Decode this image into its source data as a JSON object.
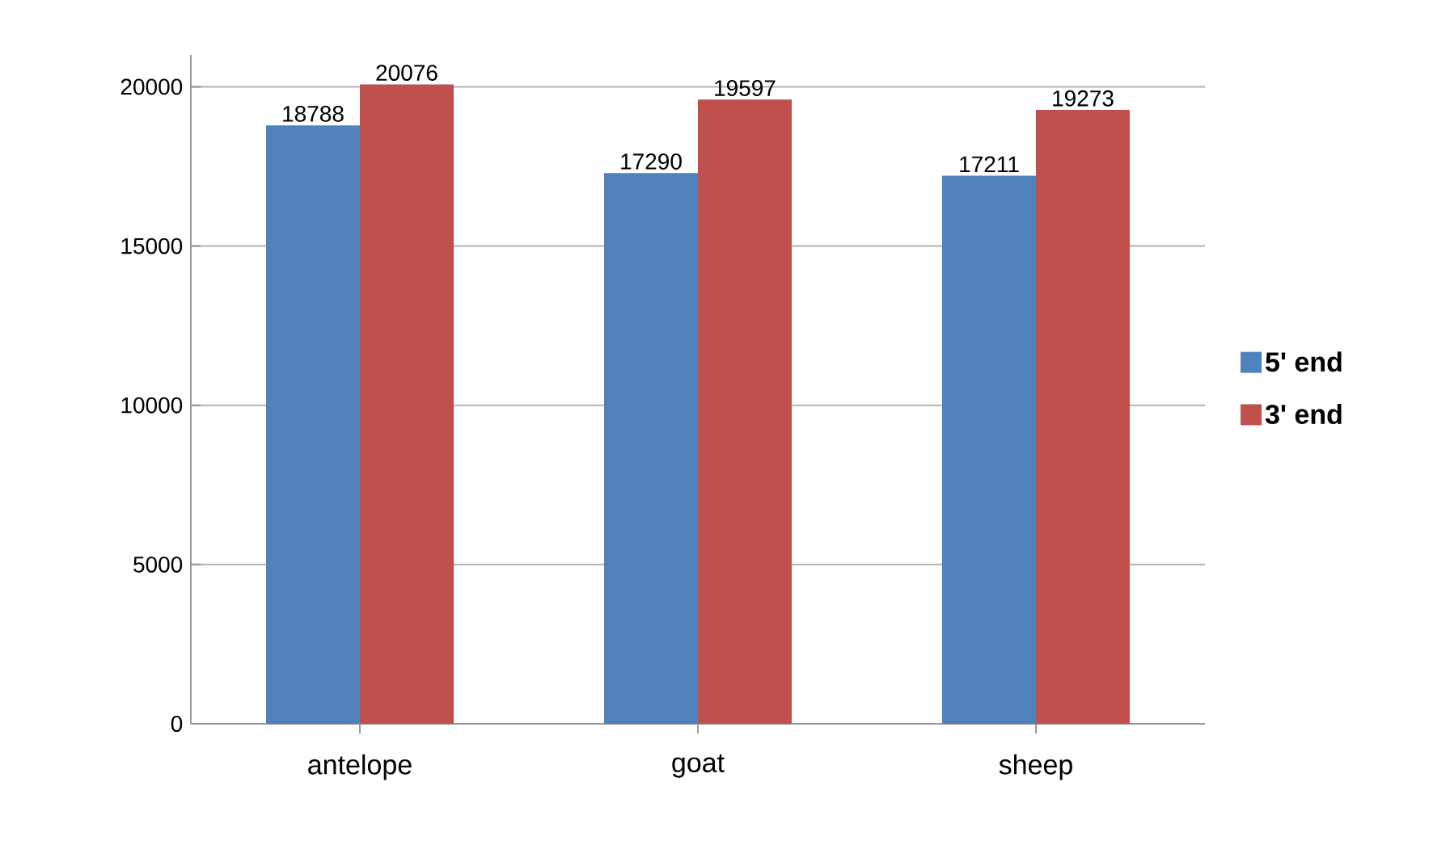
{
  "chart_data": {
    "type": "bar",
    "categories": [
      "antelope",
      "goat",
      "sheep"
    ],
    "series": [
      {
        "name": "5' end",
        "color": "#4f81bd",
        "values": [
          18788,
          17290,
          17211
        ]
      },
      {
        "name": "3' end",
        "color": "#c0504d",
        "values": [
          20076,
          19597,
          19273
        ]
      }
    ],
    "ylim": [
      0,
      21000
    ],
    "yticks": [
      0,
      5000,
      10000,
      15000,
      20000
    ],
    "grid": "y",
    "legend": "right",
    "data_labels": true
  }
}
